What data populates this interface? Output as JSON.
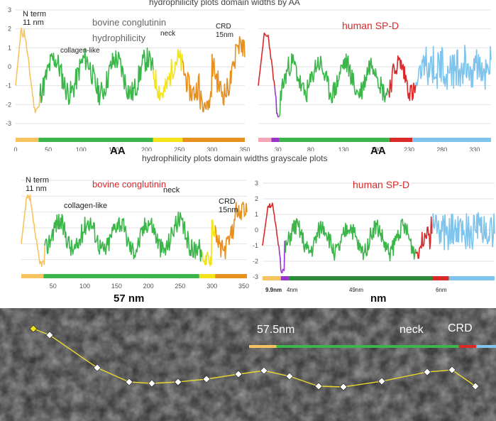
{
  "header": {
    "row1_title": "hydrophilicity plots domain widths by AA",
    "row2_title": "hydrophilicity plots domain widths grayscale plots"
  },
  "colors": {
    "yellow_light": "#f7c35f",
    "green": "#3cb64a",
    "yellow": "#f2e21a",
    "orange": "#e8901e",
    "red": "#d9292a",
    "purple": "#9933cc",
    "blue": "#7fc4ec",
    "pink": "#f4a6b6",
    "dark_green": "#2e8b3e",
    "gray_bg": "#4a4a4a"
  },
  "panels": [
    {
      "id": "p1",
      "labels": {
        "n_term": "N term",
        "n_term_nm": "11 nm",
        "collagen": "collagen-like",
        "name": "bovine conglutinin",
        "hydrophilicity": "hydrophilicity",
        "neck": "neck",
        "crd": "CRD",
        "crd_nm": "15nm"
      },
      "bottom_label": "AA",
      "chart_data": {
        "type": "line",
        "xlim": [
          0,
          350
        ],
        "ylim": [
          -3,
          3
        ],
        "x_ticks": [
          "0",
          "50",
          "100",
          "150",
          "200",
          "250",
          "300",
          "350"
        ],
        "y_ticks": [
          "3",
          "2",
          "1",
          "0",
          "-1",
          "-2",
          "-3"
        ],
        "segments": [
          {
            "color": "yellow_light",
            "x": [
              0,
              37
            ]
          },
          {
            "color": "green",
            "x": [
              37,
              210
            ]
          },
          {
            "color": "yellow",
            "x": [
              210,
              255
            ]
          },
          {
            "color": "orange",
            "x": [
              255,
              350
            ]
          }
        ],
        "domain_bar": [
          {
            "color": "yellow_light",
            "x": [
              0,
              35
            ]
          },
          {
            "color": "green",
            "x": [
              35,
              210
            ]
          },
          {
            "color": "yellow",
            "x": [
              210,
              255
            ]
          },
          {
            "color": "orange",
            "x": [
              255,
              350
            ]
          }
        ]
      }
    },
    {
      "id": "p2",
      "labels": {
        "name": "human SP-D"
      },
      "bottom_label": "AA",
      "chart_data": {
        "type": "line",
        "xlim": [
          0,
          355
        ],
        "ylim": [
          -3,
          3
        ],
        "x_ticks": [
          "30",
          "80",
          "130",
          "180",
          "230",
          "280",
          "330"
        ],
        "y_ticks": [],
        "segments": [
          {
            "color": "red",
            "x": [
              0,
              25
            ]
          },
          {
            "color": "purple",
            "x": [
              25,
              32
            ]
          },
          {
            "color": "green",
            "x": [
              32,
              200
            ]
          },
          {
            "color": "red",
            "x": [
              200,
              240
            ]
          },
          {
            "color": "blue",
            "x": [
              240,
              355
            ]
          }
        ],
        "domain_bar": [
          {
            "color": "pink",
            "x": [
              0,
              20
            ]
          },
          {
            "color": "purple",
            "x": [
              20,
              32
            ]
          },
          {
            "color": "green",
            "x": [
              32,
              200
            ]
          },
          {
            "color": "red",
            "x": [
              200,
              235
            ]
          },
          {
            "color": "blue",
            "x": [
              235,
              355
            ]
          }
        ]
      }
    },
    {
      "id": "p3",
      "labels": {
        "n_term": "N term",
        "n_term_nm": "11 nm",
        "collagen": "collagen-like",
        "name": "bovine conglutinin",
        "neck": "neck",
        "crd": "CRD",
        "crd_nm": "15nm"
      },
      "bottom_label": "57 nm",
      "chart_data": {
        "type": "line",
        "xlim": [
          0,
          355
        ],
        "ylim": [
          -3,
          3
        ],
        "x_ticks": [
          "50",
          "100",
          "150",
          "200",
          "250",
          "300",
          "350"
        ],
        "y_ticks": [],
        "segments": [
          {
            "color": "yellow_light",
            "x": [
              0,
              37
            ]
          },
          {
            "color": "green",
            "x": [
              37,
              285
            ]
          },
          {
            "color": "yellow",
            "x": [
              285,
              305
            ]
          },
          {
            "color": "orange",
            "x": [
              305,
              355
            ]
          }
        ],
        "domain_bar": [
          {
            "color": "yellow_light",
            "x": [
              0,
              35
            ]
          },
          {
            "color": "green",
            "x": [
              35,
              280
            ]
          },
          {
            "color": "yellow",
            "x": [
              280,
              305
            ]
          },
          {
            "color": "orange",
            "x": [
              305,
              355
            ]
          }
        ]
      }
    },
    {
      "id": "p4",
      "labels": {
        "name": "human SP-D",
        "seg1": "9.9nm",
        "seg2": "4nm",
        "seg3": "49nm",
        "seg4": "6nm"
      },
      "bottom_label": "nm",
      "chart_data": {
        "type": "line",
        "xlim": [
          0,
          355
        ],
        "ylim": [
          -3,
          3
        ],
        "x_ticks": [],
        "y_ticks": [
          "3",
          "2",
          "1",
          "0",
          "-1",
          "-2",
          "-3"
        ],
        "segments": [
          {
            "color": "red",
            "x": [
              0,
              25
            ]
          },
          {
            "color": "purple",
            "x": [
              25,
              35
            ]
          },
          {
            "color": "green",
            "x": [
              35,
              235
            ]
          },
          {
            "color": "red",
            "x": [
              235,
              260
            ]
          },
          {
            "color": "blue",
            "x": [
              260,
              355
            ]
          }
        ],
        "domain_bar": [
          {
            "color": "yellow_light",
            "x": [
              0,
              28
            ]
          },
          {
            "color": "purple",
            "x": [
              28,
              40
            ]
          },
          {
            "color": "dark_green",
            "x": [
              40,
              260
            ]
          },
          {
            "color": "red",
            "x": [
              260,
              285
            ]
          },
          {
            "color": "blue",
            "x": [
              285,
              355
            ]
          }
        ]
      }
    }
  ],
  "micrograph": {
    "length_label": "57.5nm",
    "neck_label": "neck",
    "crd_label": "CRD",
    "scale_bar": [
      {
        "color": "yellow_light",
        "fraction": 0.11
      },
      {
        "color": "green",
        "fraction": 0.73
      },
      {
        "color": "red",
        "fraction": 0.07
      },
      {
        "color": "blue",
        "fraction": 0.09
      }
    ]
  }
}
